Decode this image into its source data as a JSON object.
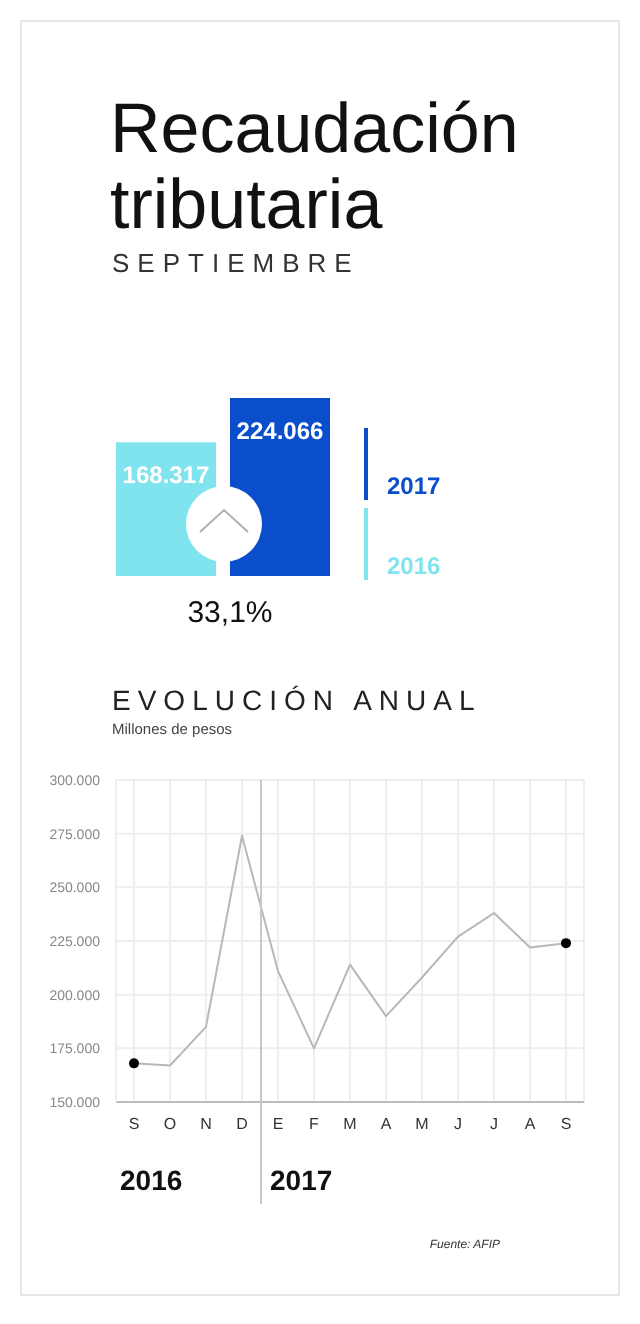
{
  "chart_data": [
    {
      "type": "bar",
      "title": "Recaudación tributaria",
      "subtitle": "SEPTIEMBRE",
      "categories": [
        null
      ],
      "series": [
        {
          "name": "2016",
          "color": "#80e4ee",
          "values": [
            168317
          ],
          "value_labels": [
            "168.317"
          ]
        },
        {
          "name": "2017",
          "color": "#0a4ecb",
          "values": [
            224066
          ],
          "value_labels": [
            "224.066"
          ]
        }
      ],
      "legend": "right",
      "annotations": [
        "33,1%"
      ]
    },
    {
      "type": "line",
      "title": "EVOLUCIÓN ANUAL",
      "subtitle": "Millones de pesos",
      "categories": [
        "S",
        "O",
        "N",
        "D",
        "E",
        "F",
        "M",
        "A",
        "M",
        "J",
        "J",
        "A",
        "S"
      ],
      "series": [
        {
          "color": "#b8b8b8",
          "values": [
            168000,
            167000,
            185000,
            274000,
            211000,
            175000,
            214000,
            190000,
            208000,
            227000,
            238000,
            222000,
            224000
          ]
        },
        {
          "type": "scatter",
          "color": "#000000",
          "values": [
            168000,
            null,
            null,
            null,
            null,
            null,
            null,
            null,
            null,
            null,
            null,
            null,
            224000
          ]
        }
      ],
      "ylim": [
        150000,
        300000
      ],
      "yticks": [
        {
          "value": 150000,
          "label": "150.000"
        },
        {
          "value": 175000,
          "label": "175.000"
        },
        {
          "value": 200000,
          "label": "200.000"
        },
        {
          "value": 225000,
          "label": "225.000"
        },
        {
          "value": 250000,
          "label": "250.000"
        },
        {
          "value": 275000,
          "label": "275.000"
        },
        {
          "value": 300000,
          "label": "300.000"
        }
      ],
      "grid": true,
      "ref_lines": [
        {
          "axis": "x",
          "value": "E",
          "color": "#c8c8c8"
        }
      ],
      "annotations": [
        "2016",
        "2017",
        "Fuente: AFIP"
      ]
    }
  ]
}
